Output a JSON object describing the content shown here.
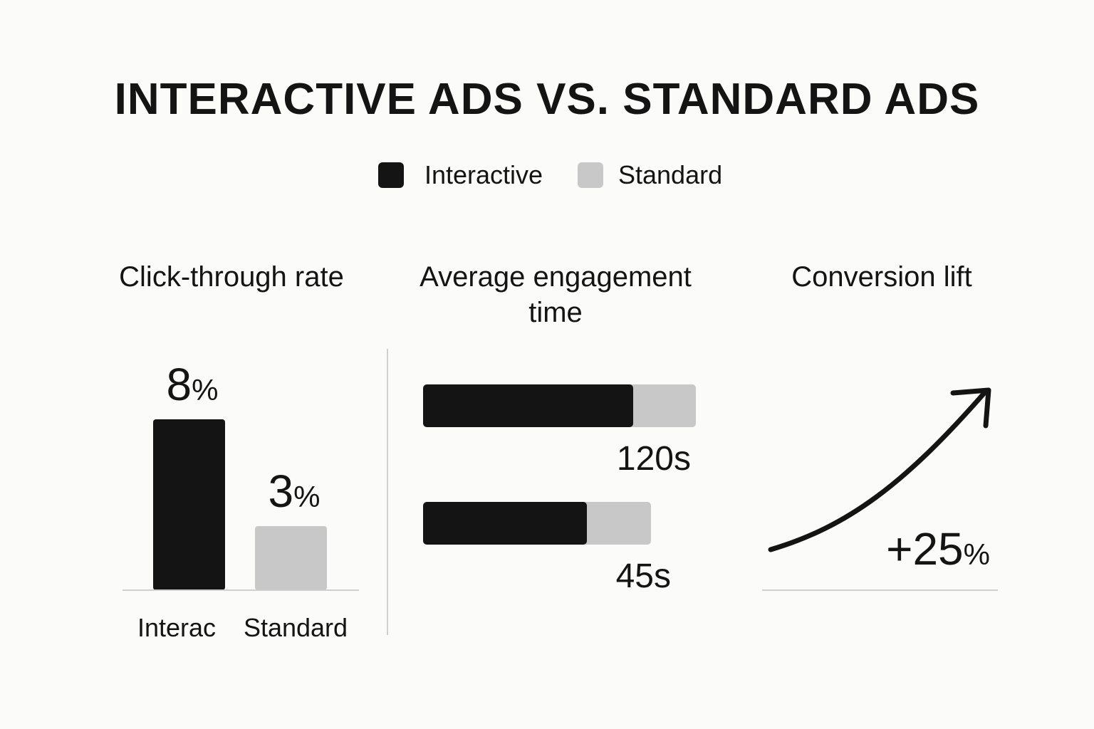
{
  "title": "INTERACTIVE ADS VS. STANDARD ADS",
  "colors": {
    "interactive": "#141414",
    "standard": "#c8c8c8",
    "background": "#fbfbfa",
    "axis": "#cfcfcf"
  },
  "legend": [
    {
      "label": "Interactive",
      "color": "#141414"
    },
    {
      "label": "Standard",
      "color": "#c8c8c8"
    }
  ],
  "chart_data": [
    {
      "type": "bar",
      "title": "Click-through rate",
      "categories": [
        "Interac",
        "Standard"
      ],
      "values": [
        8,
        3
      ],
      "value_labels": [
        {
          "number": "8",
          "unit": "%"
        },
        {
          "number": "3",
          "unit": "%"
        }
      ],
      "unit": "%",
      "ylim": [
        0,
        10
      ]
    },
    {
      "type": "bar",
      "orientation": "horizontal",
      "title": "Average engagement time",
      "title_lines": [
        "Average engagement",
        "time"
      ],
      "series": [
        {
          "name": "Interactive",
          "values": [
            120,
            45
          ]
        },
        {
          "name": "Standard",
          "values": [
            120,
            45
          ]
        }
      ],
      "bars": [
        {
          "label": "120s",
          "total": 120,
          "interactive_share": 0.77
        },
        {
          "label": "45s",
          "total": 45,
          "interactive_share": 0.72
        }
      ],
      "unit": "s"
    },
    {
      "type": "line",
      "title": "Conversion lift",
      "value_label": {
        "number": "+25",
        "unit": "%"
      },
      "value": 25,
      "unit": "%",
      "trend": "up"
    }
  ]
}
